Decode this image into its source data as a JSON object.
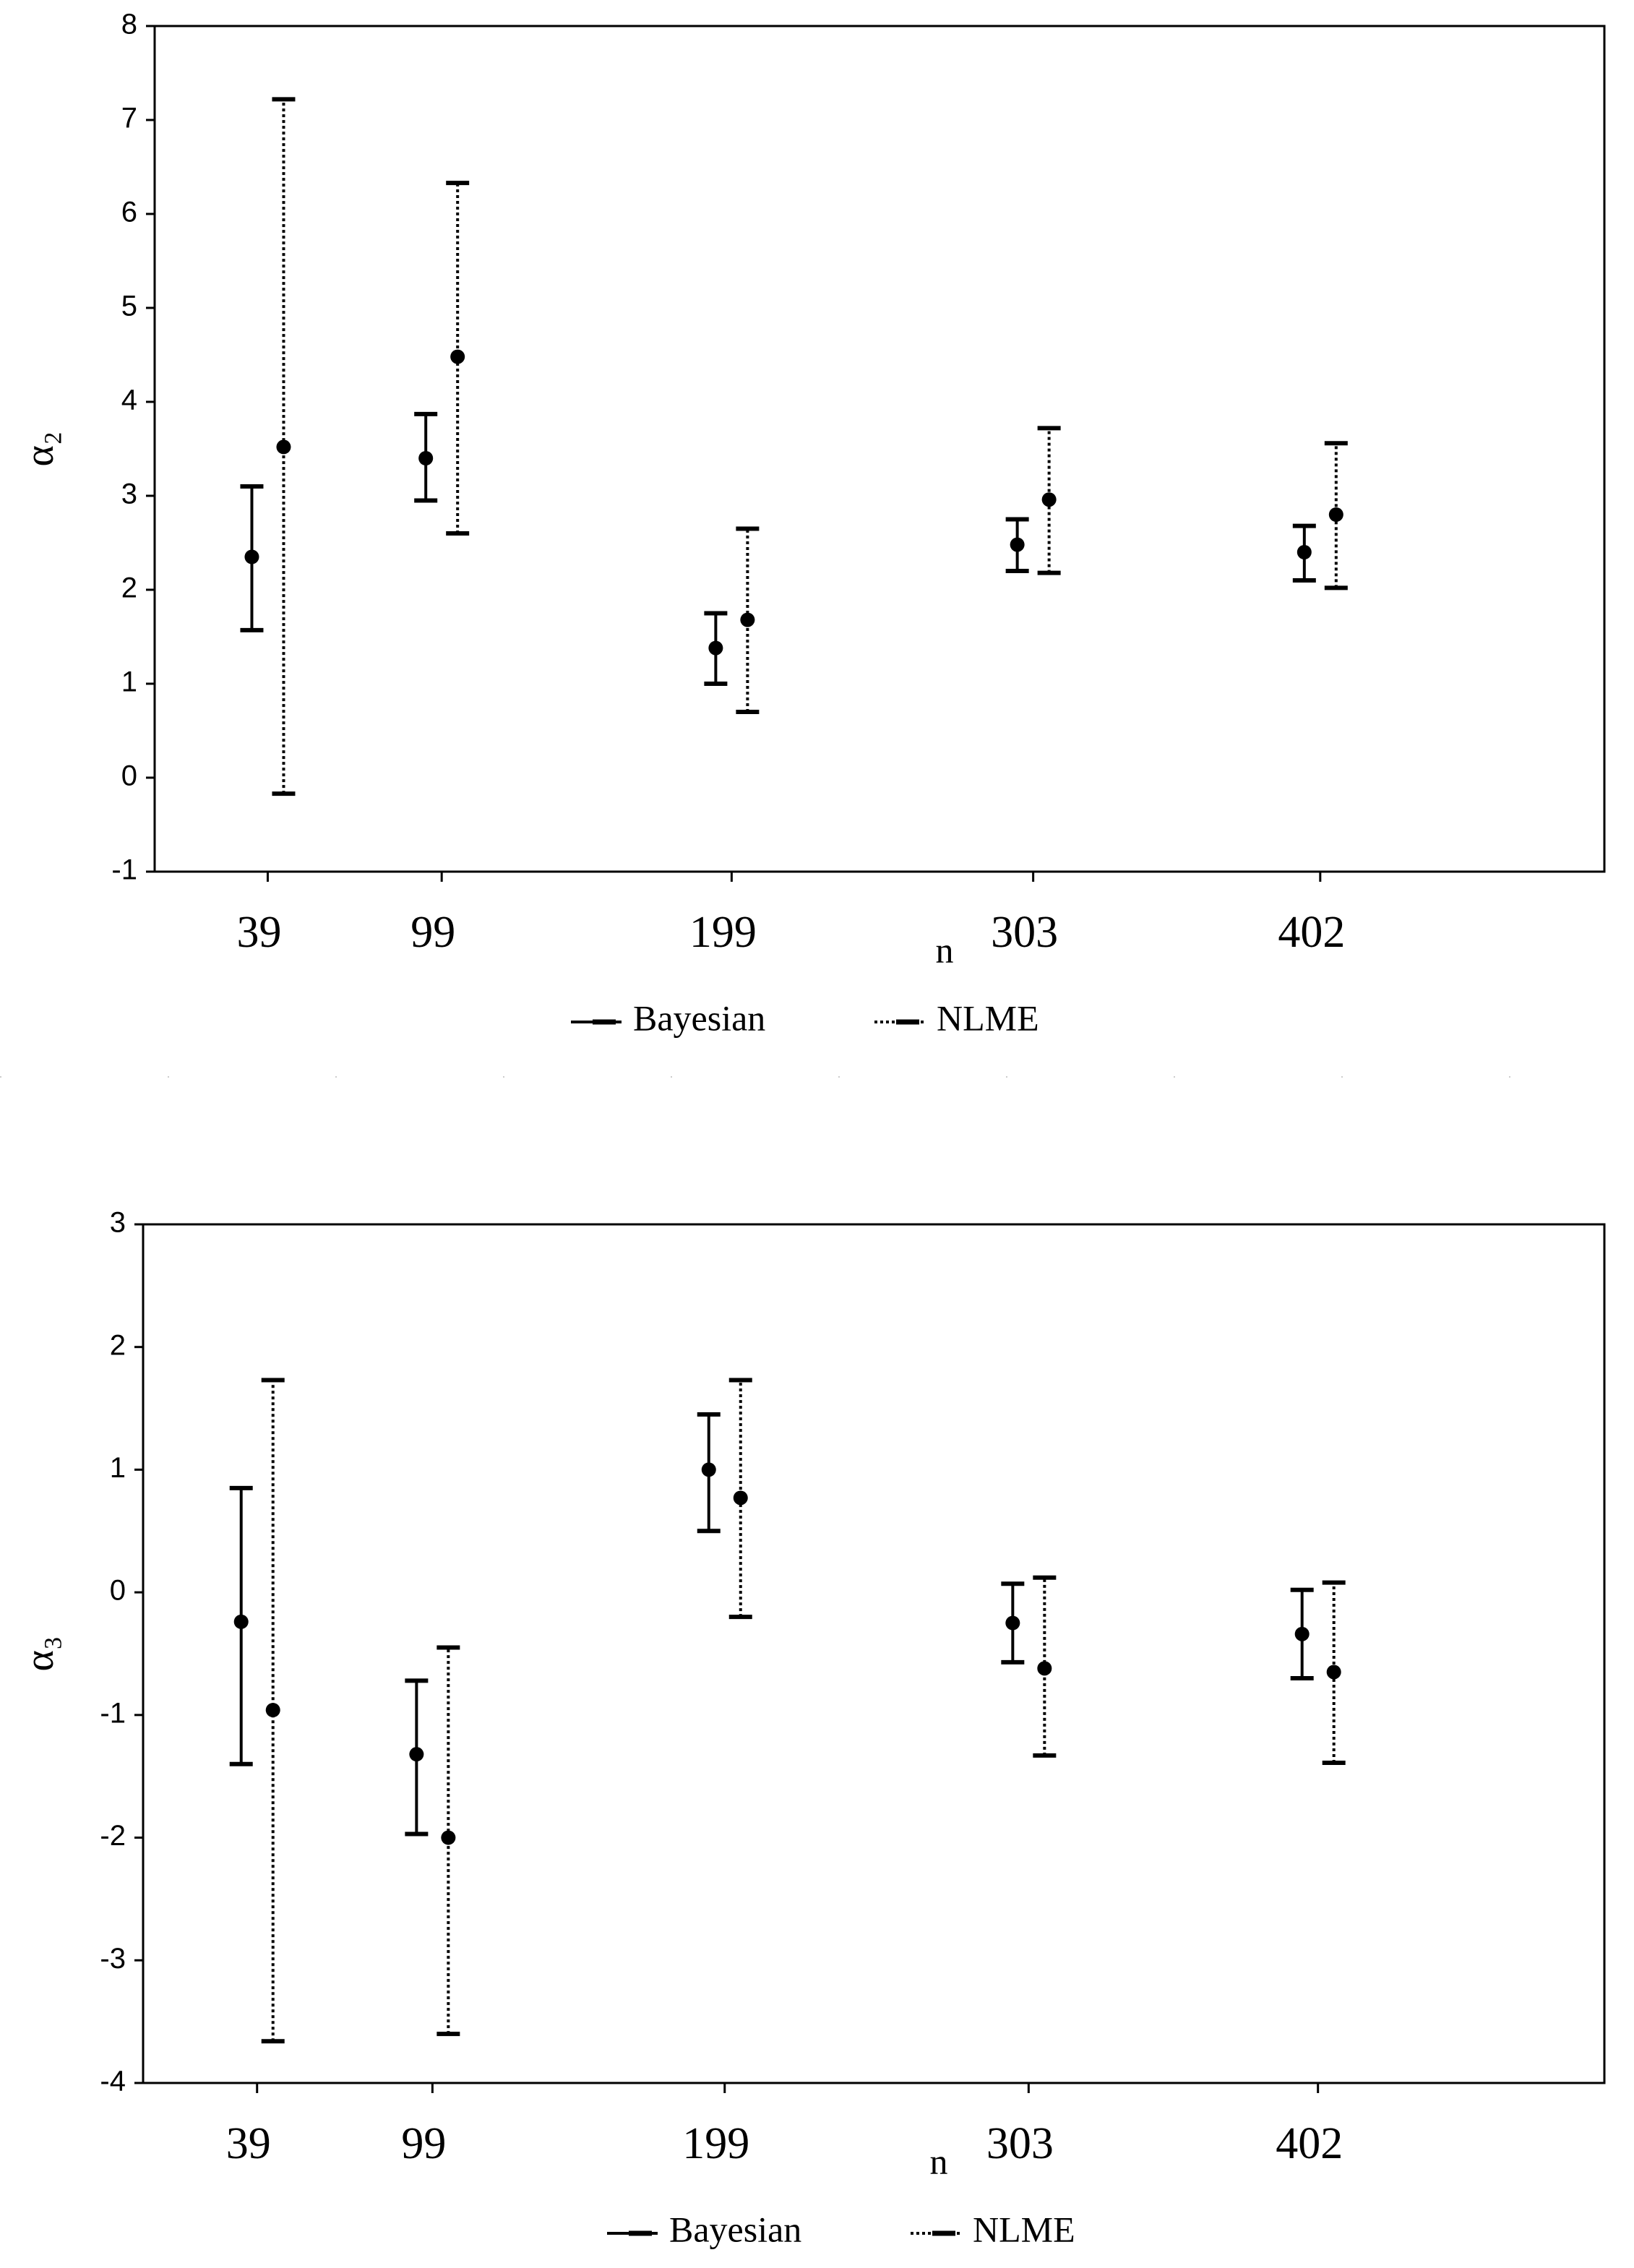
{
  "chart_data": [
    {
      "type": "errorbar",
      "ylabel": "α₂",
      "xlabel": "n",
      "x": [
        39,
        99,
        199,
        303,
        402
      ],
      "xlim": [
        0,
        500
      ],
      "xticks": [
        39,
        99,
        199,
        303,
        402
      ],
      "ylim": [
        -1,
        8
      ],
      "yticks": [
        -1,
        0,
        1,
        2,
        3,
        4,
        5,
        6,
        7,
        8
      ],
      "series": [
        {
          "name": "Bayesian",
          "color": "#000000",
          "line_style": "solid",
          "values": [
            2.35,
            3.4,
            1.38,
            2.48,
            2.4
          ],
          "lower": [
            1.57,
            2.95,
            1.0,
            2.2,
            2.1
          ],
          "upper": [
            3.1,
            3.87,
            1.75,
            2.75,
            2.68
          ]
        },
        {
          "name": "NLME",
          "color": "#000000",
          "line_style": "dotted",
          "values": [
            3.52,
            4.48,
            1.68,
            2.96,
            2.8
          ],
          "lower": [
            -0.17,
            2.6,
            0.7,
            2.18,
            2.02
          ],
          "upper": [
            7.22,
            6.33,
            2.65,
            3.72,
            3.56
          ]
        }
      ]
    },
    {
      "type": "errorbar",
      "ylabel": "α₃",
      "xlabel": "n",
      "x": [
        39,
        99,
        199,
        303,
        402
      ],
      "xlim": [
        0,
        500
      ],
      "xticks": [
        39,
        99,
        199,
        303,
        402
      ],
      "ylim": [
        -4,
        3
      ],
      "yticks": [
        -4,
        -3,
        -2,
        -1,
        0,
        1,
        2,
        3
      ],
      "series": [
        {
          "name": "Bayesian",
          "color": "#000000",
          "line_style": "solid",
          "values": [
            -0.24,
            -1.32,
            1.0,
            -0.25,
            -0.34
          ],
          "lower": [
            -1.4,
            -1.97,
            0.5,
            -0.57,
            -0.7
          ],
          "upper": [
            0.85,
            -0.72,
            1.45,
            0.07,
            0.02
          ]
        },
        {
          "name": "NLME",
          "color": "#000000",
          "line_style": "dotted",
          "values": [
            -0.96,
            -2.0,
            0.77,
            -0.62,
            -0.65
          ],
          "lower": [
            -3.66,
            -3.6,
            -0.2,
            -1.33,
            -1.39
          ],
          "upper": [
            1.73,
            -0.45,
            1.73,
            0.12,
            0.08
          ]
        }
      ]
    }
  ]
}
